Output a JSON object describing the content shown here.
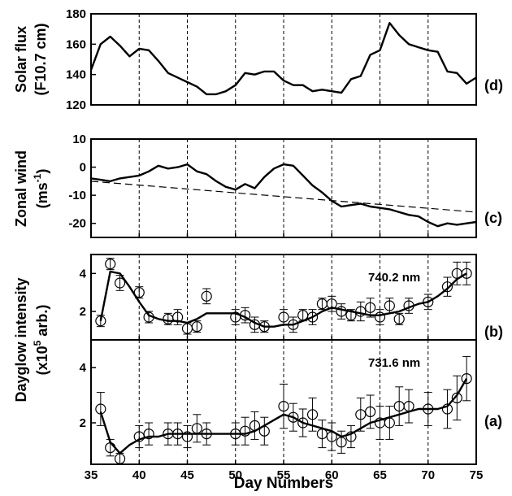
{
  "chart_data": [
    {
      "type": "line",
      "panel_tag": "(d)",
      "ylabel_lines": [
        "Solar flux",
        "(F10.7 cm)"
      ],
      "xlim": [
        35,
        75
      ],
      "ylim": [
        120,
        180
      ],
      "yticks": [
        "180",
        "160",
        "140",
        "120"
      ],
      "grid": "vertical dashed every 5 days",
      "series": [
        {
          "x": [
            35,
            36,
            37,
            38,
            39,
            40,
            41,
            42,
            43,
            44,
            45,
            46,
            47,
            48,
            49,
            50,
            51,
            52,
            53,
            54,
            55,
            56,
            57,
            58,
            59,
            60,
            61,
            62,
            63,
            64,
            65,
            66,
            67,
            68,
            69,
            70,
            71,
            72,
            73,
            74,
            75
          ],
          "y": [
            143,
            160,
            165,
            159,
            152,
            157,
            156,
            149,
            141,
            138,
            135,
            132,
            127,
            127,
            129,
            133,
            141,
            140,
            142,
            142,
            136,
            133,
            133,
            129,
            130,
            129,
            128,
            137,
            139,
            153,
            156,
            174,
            166,
            160,
            158,
            156,
            155,
            142,
            141,
            134,
            138
          ]
        }
      ]
    },
    {
      "type": "line",
      "panel_tag": "(c)",
      "ylabel_lines": [
        "Zonal wind",
        "(ms",
        "-1",
        ")"
      ],
      "xlim": [
        35,
        75
      ],
      "ylim": [
        -25,
        10
      ],
      "yticks": [
        "10",
        "0",
        "-10",
        "-20"
      ],
      "grid": "vertical dashed every 5 days",
      "series": [
        {
          "x": [
            35,
            36,
            37,
            38,
            39,
            40,
            41,
            42,
            43,
            44,
            45,
            46,
            47,
            48,
            49,
            50,
            51,
            52,
            53,
            54,
            55,
            56,
            57,
            58,
            59,
            60,
            61,
            62,
            63,
            64,
            65,
            66,
            67,
            68,
            69,
            70,
            71,
            72,
            73,
            74,
            75
          ],
          "y": [
            -4,
            -4.5,
            -5,
            -4,
            -3.5,
            -3,
            -1.5,
            0.5,
            -0.5,
            0,
            1,
            -1.5,
            -2.5,
            -5,
            -7,
            -8,
            -6,
            -7.5,
            -3.5,
            -0.5,
            1,
            0.5,
            -3,
            -6.5,
            -9,
            -12,
            -14,
            -13.5,
            -13,
            -14,
            -14.5,
            -15,
            -16,
            -17,
            -17.5,
            -19.5,
            -21,
            -20,
            -20.5,
            -20,
            -19.5
          ]
        },
        {
          "x": [
            35,
            75
          ],
          "y": [
            -5,
            -16
          ]
        }
      ]
    },
    {
      "type": "line",
      "panel_tag": "(b)",
      "annotation": "740.2 nm",
      "xlim": [
        35,
        75
      ],
      "ylim": [
        0.5,
        5
      ],
      "yticks": [
        "4",
        "2"
      ],
      "grid": "vertical dashed every 5 days",
      "points": {
        "x": [
          36,
          37,
          38,
          40,
          41,
          43,
          44,
          45,
          46,
          47,
          50,
          51,
          52,
          53,
          55,
          56,
          57,
          58,
          59,
          60,
          61,
          62,
          63,
          64,
          65,
          66,
          67,
          68,
          70,
          72,
          73,
          74
        ],
        "y": [
          1.5,
          4.5,
          3.5,
          3,
          1.7,
          1.6,
          1.7,
          1.1,
          1.2,
          2.8,
          1.7,
          1.8,
          1.3,
          1.2,
          1.7,
          1.3,
          1.8,
          1.7,
          2.4,
          2.4,
          2,
          1.8,
          2,
          2.2,
          1.7,
          2.3,
          1.6,
          2.3,
          2.5,
          3.3,
          4,
          4
        ],
        "err": [
          0.3,
          0.3,
          0.4,
          0.3,
          0.3,
          0.3,
          0.4,
          0.3,
          0.3,
          0.4,
          0.4,
          0.4,
          0.4,
          0.3,
          0.4,
          0.4,
          0.3,
          0.4,
          0.3,
          0.4,
          0.4,
          0.3,
          0.5,
          0.5,
          0.4,
          0.4,
          0.3,
          0.4,
          0.4,
          0.5,
          0.6,
          0.6
        ]
      },
      "series": [
        {
          "x": [
            36,
            37,
            38,
            39,
            40,
            41,
            42,
            43,
            44,
            45,
            46,
            47,
            48,
            49,
            50,
            51,
            52,
            53,
            54,
            55,
            56,
            57,
            58,
            59,
            60,
            61,
            62,
            63,
            64,
            65,
            66,
            67,
            68,
            69,
            70,
            71,
            72,
            73,
            74
          ],
          "y": [
            1.5,
            4.1,
            4.0,
            3.3,
            2.5,
            1.8,
            1.6,
            1.5,
            1.5,
            1.4,
            1.6,
            1.9,
            1.9,
            1.9,
            1.9,
            1.7,
            1.4,
            1.2,
            1.2,
            1.3,
            1.3,
            1.5,
            1.7,
            2.0,
            2.2,
            2.1,
            2.0,
            1.9,
            1.8,
            1.8,
            1.9,
            2.0,
            2.2,
            2.4,
            2.5,
            2.8,
            3.2,
            3.7,
            4.0
          ]
        }
      ]
    },
    {
      "type": "line",
      "panel_tag": "(a)",
      "annotation": "731.6 nm",
      "xlim": [
        35,
        75
      ],
      "ylim": [
        0.5,
        5
      ],
      "yticks": [
        "4",
        "2"
      ],
      "grid": "vertical dashed every 5 days",
      "points": {
        "x": [
          36,
          37,
          38,
          40,
          41,
          43,
          44,
          45,
          46,
          47,
          50,
          51,
          52,
          53,
          55,
          56,
          57,
          58,
          59,
          60,
          61,
          62,
          63,
          64,
          65,
          66,
          67,
          68,
          70,
          72,
          73,
          74
        ],
        "y": [
          2.5,
          1.1,
          0.7,
          1.5,
          1.6,
          1.6,
          1.6,
          1.5,
          1.8,
          1.6,
          1.6,
          1.7,
          1.9,
          1.7,
          2.6,
          2.2,
          2.0,
          2.3,
          1.6,
          1.5,
          1.3,
          1.5,
          2.3,
          2.4,
          2.0,
          2.0,
          2.6,
          2.6,
          2.5,
          2.5,
          2.9,
          3.6
        ],
        "err": [
          0.6,
          0.3,
          0.2,
          0.4,
          0.4,
          0.4,
          0.4,
          0.4,
          0.5,
          0.4,
          0.4,
          0.5,
          0.5,
          0.5,
          0.8,
          0.5,
          0.5,
          0.6,
          0.5,
          0.5,
          0.4,
          0.4,
          0.6,
          0.6,
          0.6,
          0.6,
          0.7,
          0.6,
          0.6,
          0.7,
          0.8,
          0.8
        ]
      },
      "series": [
        {
          "x": [
            36,
            37,
            38,
            39,
            40,
            41,
            42,
            43,
            44,
            45,
            46,
            47,
            48,
            49,
            50,
            51,
            52,
            53,
            54,
            55,
            56,
            57,
            58,
            59,
            60,
            61,
            62,
            63,
            64,
            65,
            66,
            67,
            68,
            69,
            70,
            71,
            72,
            73,
            74
          ],
          "y": [
            2.4,
            1.3,
            0.9,
            1.2,
            1.4,
            1.5,
            1.5,
            1.6,
            1.6,
            1.6,
            1.6,
            1.6,
            1.6,
            1.6,
            1.6,
            1.6,
            1.7,
            1.9,
            2.1,
            2.3,
            2.2,
            2.0,
            1.9,
            1.8,
            1.7,
            1.5,
            1.6,
            1.8,
            2.0,
            2.1,
            2.2,
            2.3,
            2.4,
            2.5,
            2.5,
            2.5,
            2.6,
            3.0,
            3.6
          ]
        }
      ]
    }
  ],
  "shared_ylabel_lines": [
    "Dayglow intensity",
    "(x10",
    "5",
    " arb.)"
  ],
  "xticks": [
    "35",
    "40",
    "45",
    "50",
    "55",
    "60",
    "65",
    "70",
    "75"
  ],
  "xlabel": "Day Numbers"
}
